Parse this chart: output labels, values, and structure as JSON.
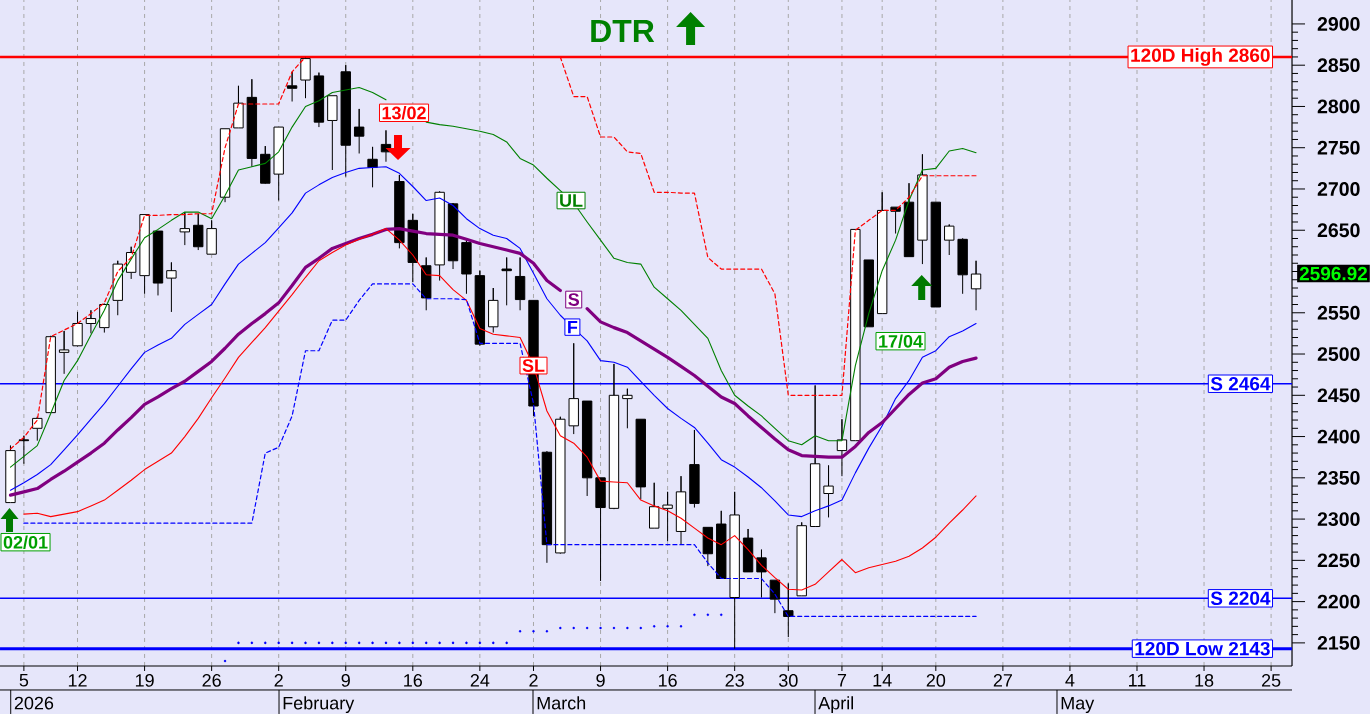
{
  "chart_data": {
    "type": "candlestick",
    "title": "DTR",
    "categories": [
      null,
      "5",
      null,
      null,
      null,
      "12",
      null,
      null,
      null,
      null,
      "19",
      null,
      null,
      null,
      null,
      "26",
      null,
      null,
      null,
      null,
      "2",
      null,
      null,
      null,
      null,
      "9",
      null,
      null,
      null,
      null,
      "16",
      null,
      null,
      null,
      null,
      "24",
      null,
      null,
      null,
      "2",
      null,
      null,
      null,
      null,
      "9",
      null,
      null,
      null,
      null,
      "16",
      null,
      null,
      null,
      null,
      "23",
      null,
      null,
      null,
      "30",
      null,
      null,
      null,
      "7",
      null,
      null,
      "14",
      null,
      null,
      null,
      "20",
      null,
      null,
      null,
      null,
      "27",
      null,
      null,
      null,
      null,
      "4",
      null,
      null,
      null,
      null,
      "11",
      null,
      null,
      null,
      null,
      "18",
      null,
      null,
      null,
      null,
      "25",
      null
    ],
    "ohlc": [
      [
        2320,
        2389,
        2320,
        2383
      ],
      [
        2396,
        2401,
        2367,
        2395
      ],
      [
        2410,
        2424,
        2395,
        2422
      ],
      [
        2429,
        2522,
        2429,
        2521
      ],
      [
        2502,
        2528,
        2476,
        2505
      ],
      [
        2510,
        2551,
        2509,
        2537
      ],
      [
        2537,
        2553,
        2525,
        2543
      ],
      [
        2532,
        2561,
        2526,
        2560
      ],
      [
        2565,
        2613,
        2547,
        2609
      ],
      [
        2599,
        2630,
        2591,
        2623
      ],
      [
        2595,
        2669,
        2573,
        2669
      ],
      [
        2649,
        2649,
        2571,
        2586
      ],
      [
        2592,
        2611,
        2551,
        2601
      ],
      [
        2648,
        2672,
        2632,
        2652
      ],
      [
        2656,
        2670,
        2626,
        2630
      ],
      [
        2621,
        2662,
        2621,
        2652
      ],
      [
        2690,
        2773,
        2684,
        2773
      ],
      [
        2774,
        2825,
        2774,
        2804
      ],
      [
        2811,
        2833,
        2727,
        2737
      ],
      [
        2742,
        2752,
        2706,
        2707
      ],
      [
        2718,
        2775,
        2686,
        2775
      ],
      [
        2825,
        2842,
        2806,
        2822
      ],
      [
        2832,
        2860,
        2810,
        2858
      ],
      [
        2837,
        2841,
        2775,
        2781
      ],
      [
        2783,
        2813,
        2723,
        2813
      ],
      [
        2842,
        2850,
        2715,
        2753
      ],
      [
        2775,
        2797,
        2743,
        2764
      ],
      [
        2736,
        2751,
        2702,
        2726
      ],
      [
        2754,
        2771,
        2733,
        2745
      ],
      [
        2709,
        2717,
        2628,
        2635
      ],
      [
        2662,
        2670,
        2587,
        2611
      ],
      [
        2607,
        2617,
        2553,
        2568
      ],
      [
        2608,
        2697,
        2589,
        2696
      ],
      [
        2682,
        2683,
        2603,
        2613
      ],
      [
        2635,
        2638,
        2573,
        2597
      ],
      [
        2595,
        2601,
        2510,
        2512
      ],
      [
        2533,
        2580,
        2526,
        2565
      ],
      [
        2603,
        2617,
        2559,
        2601
      ],
      [
        2594,
        2617,
        2553,
        2566
      ],
      [
        2565,
        2565,
        2425,
        2437
      ],
      [
        2381,
        2382,
        2247,
        2269
      ],
      [
        2259,
        2424,
        2258,
        2421
      ],
      [
        2413,
        2513,
        2403,
        2446
      ],
      [
        2443,
        2443,
        2328,
        2350
      ],
      [
        2350,
        2350,
        2225,
        2314
      ],
      [
        2313,
        2488,
        2312,
        2450
      ],
      [
        2446,
        2458,
        2410,
        2450
      ],
      [
        2421,
        2421,
        2324,
        2339
      ],
      [
        2289,
        2344,
        2289,
        2315
      ],
      [
        2313,
        2333,
        2273,
        2317
      ],
      [
        2285,
        2352,
        2269,
        2333
      ],
      [
        2366,
        2408,
        2314,
        2319
      ],
      [
        2290,
        2290,
        2243,
        2258
      ],
      [
        2294,
        2310,
        2228,
        2228
      ],
      [
        2205,
        2333,
        2143,
        2305
      ],
      [
        2277,
        2288,
        2236,
        2236
      ],
      [
        2253,
        2263,
        2205,
        2236
      ],
      [
        2226,
        2226,
        2186,
        2203
      ],
      [
        2189,
        2222,
        2157,
        2182
      ],
      [
        2207,
        2296,
        2207,
        2292
      ],
      [
        2291,
        2462,
        2291,
        2367
      ],
      [
        2331,
        2365,
        2302,
        2340
      ],
      [
        2383,
        2421,
        2352,
        2396
      ],
      [
        2395,
        2651,
        2395,
        2651
      ],
      [
        2614,
        2614,
        2533,
        2533
      ],
      [
        2549,
        2696,
        2549,
        2674
      ],
      [
        2678,
        2678,
        2646,
        2673
      ],
      [
        2684,
        2707,
        2618,
        2618
      ],
      [
        2638,
        2742,
        2609,
        2717
      ],
      [
        2684,
        2684,
        2557,
        2557
      ],
      [
        2638,
        2657,
        2620,
        2655
      ],
      [
        2639,
        2640,
        2573,
        2596
      ],
      [
        2579,
        2613,
        2553,
        2596.92
      ],
      null,
      null,
      null,
      null,
      null,
      null,
      null,
      null,
      null,
      null,
      null,
      null,
      null,
      null,
      null,
      null,
      null,
      null,
      null,
      null,
      null,
      null,
      null
    ],
    "series": [
      {
        "name": "UL",
        "type": "line",
        "color": "#008000",
        "line_style": "solid",
        "values": [
          2363,
          2376,
          2389,
          2428,
          2468,
          2492,
          2523,
          2553,
          2589,
          2615,
          2641,
          2651,
          2662,
          2672,
          2672,
          2664,
          2692,
          2723,
          2727,
          2731,
          2745,
          2775,
          2800,
          2807,
          2817,
          2820,
          2823,
          2817,
          2808,
          null,
          null,
          2781,
          2778,
          2776,
          2773,
          2770,
          2766,
          2757,
          2737,
          2729,
          2713,
          2698,
          2683,
          2660,
          2638,
          2616,
          2611,
          2609,
          2581,
          2567,
          2553,
          2536,
          2519,
          2480,
          2450,
          2437,
          2425,
          2410,
          2395,
          2390,
          2401,
          2395,
          2395,
          2486,
          2549,
          2601,
          2638,
          2686,
          2723,
          2725,
          2746,
          2749,
          2744,
          null,
          null,
          null,
          null,
          null,
          null,
          null,
          null,
          null,
          null,
          null,
          null,
          null,
          null,
          null,
          null,
          null,
          null,
          null,
          null,
          null,
          null,
          null
        ]
      },
      {
        "name": "F",
        "type": "line",
        "color": "#0000ff",
        "line_style": "solid",
        "values": [
          2335,
          2344,
          2354,
          2366,
          2384,
          2402,
          2421,
          2440,
          2461,
          2482,
          2502,
          2511,
          2519,
          2536,
          2548,
          2560,
          2585,
          2609,
          2622,
          2635,
          2653,
          2671,
          2695,
          2705,
          2714,
          2720,
          2725,
          2726,
          2727,
          2719,
          2703,
          2686,
          2689,
          2680,
          2664,
          2652,
          2644,
          2640,
          2628,
          2598,
          2567,
          2547,
          2531,
          2516,
          2492,
          2490,
          2484,
          2467,
          2450,
          2434,
          2422,
          2411,
          2392,
          2372,
          2363,
          2351,
          2338,
          2322,
          2305,
          2303,
          2310,
          2316,
          2323,
          2356,
          2386,
          2413,
          2446,
          2468,
          2496,
          2504,
          2521,
          2528,
          2537,
          null,
          null,
          null,
          null,
          null,
          null,
          null,
          null,
          null,
          null,
          null,
          null,
          null,
          null,
          null,
          null,
          null,
          null,
          null,
          null,
          null,
          null,
          null
        ]
      },
      {
        "name": "S",
        "type": "line",
        "color": "#800080",
        "line_style": "solid",
        "values": [
          2329,
          2333,
          2337,
          2348,
          2358,
          2369,
          2380,
          2392,
          2408,
          2423,
          2439,
          2448,
          2458,
          2467,
          2479,
          2491,
          2507,
          2524,
          2537,
          2549,
          2562,
          2583,
          2605,
          2616,
          2628,
          2634,
          2640,
          2645,
          2651,
          2652,
          2649,
          2646,
          2645,
          2644,
          2639,
          2634,
          2630,
          2626,
          2622,
          2610,
          2589,
          2577,
          null,
          2555,
          2539,
          2532,
          2526,
          2516,
          2506,
          2496,
          2485,
          2474,
          2461,
          2448,
          2440,
          2425,
          2411,
          2397,
          2384,
          2377,
          2376,
          2375,
          2375,
          2388,
          2405,
          2417,
          2434,
          2451,
          2465,
          2470,
          2484,
          2491,
          2495,
          null,
          null,
          null,
          null,
          null,
          null,
          null,
          null,
          null,
          null,
          null,
          null,
          null,
          null,
          null,
          null,
          null,
          null,
          null,
          null,
          null,
          null,
          null
        ]
      },
      {
        "name": "SL",
        "type": "line",
        "color": "#ff0000",
        "line_style": "solid",
        "values": [
          null,
          2306,
          2307,
          2303,
          2306,
          2309,
          2316,
          2323,
          2335,
          2347,
          2360,
          2370,
          2380,
          2400,
          2422,
          2447,
          2471,
          2496,
          2514,
          2532,
          2552,
          2572,
          2593,
          2613,
          2623,
          2632,
          2639,
          2645,
          2652,
          2638,
          2620,
          2596,
          2595,
          2578,
          2565,
          2531,
          2524,
          2522,
          2520,
          2486,
          2431,
          2401,
          2392,
          2375,
          2346,
          2345,
          2344,
          2323,
          2316,
          2310,
          2301,
          2289,
          2277,
          2269,
          2280,
          2263,
          2244,
          2229,
          2215,
          2214,
          2221,
          2236,
          2251,
          2235,
          2241,
          2245,
          2249,
          2255,
          2265,
          2278,
          2295,
          2311,
          2328,
          null,
          null,
          null,
          null,
          null,
          null,
          null,
          null,
          null,
          null,
          null,
          null,
          null,
          null,
          null,
          null,
          null,
          null,
          null,
          null,
          null,
          null,
          null
        ]
      },
      {
        "type": "line",
        "color": "#ff0000",
        "line_style": "dashed",
        "values": [
          2385,
          2399,
          2420,
          2521,
          2529,
          2537,
          2549,
          2562,
          2600,
          2617,
          2668,
          2668,
          2669,
          2669,
          2670,
          2670,
          2750,
          2803,
          2803,
          2803,
          2803,
          2842,
          2860,
          null,
          null,
          null,
          null,
          null,
          null,
          null,
          null,
          null,
          null,
          null,
          null,
          null,
          null,
          null,
          null,
          null,
          null,
          2860,
          2812,
          2812,
          2763,
          2763,
          2745,
          2743,
          2696,
          2696,
          2695,
          2695,
          2617,
          2603,
          2603,
          2603,
          2603,
          2573,
          2450,
          2450,
          2450,
          2450,
          2450,
          2650,
          2662,
          2674,
          2674,
          2690,
          2716,
          2716,
          2716,
          2716,
          2716,
          null,
          null,
          null,
          null,
          null,
          null,
          null,
          null,
          null,
          null,
          null,
          null,
          null,
          null,
          null,
          null,
          null,
          null,
          null,
          null,
          null,
          null,
          null
        ]
      },
      {
        "type": "line",
        "color": "#0000ff",
        "line_style": "dashed",
        "values": [
          null,
          2295,
          2295,
          2295,
          2295,
          2295,
          2295,
          2295,
          2295,
          2295,
          2295,
          2295,
          2295,
          2295,
          2295,
          2295,
          2295,
          2295,
          2295,
          2380,
          2387,
          2425,
          2504,
          2504,
          2541,
          2541,
          2565,
          2585,
          2585,
          2585,
          2585,
          2567,
          2567,
          2567,
          2566,
          2513,
          2513,
          2513,
          2513,
          2440,
          2269,
          2269,
          2269,
          2269,
          2269,
          2269,
          2269,
          2269,
          2269,
          2269,
          2269,
          2269,
          2247,
          2228,
          2228,
          2228,
          2228,
          2209,
          2182,
          2182,
          2182,
          2182,
          2182,
          2182,
          2182,
          2182,
          2182,
          2182,
          2182,
          2182,
          2182,
          2182,
          2182,
          null,
          null,
          null,
          null,
          null,
          null,
          null,
          null,
          null,
          null,
          null,
          null,
          null,
          null,
          null,
          null,
          null,
          null,
          null,
          null,
          null,
          null,
          null
        ]
      },
      {
        "type": "scatter",
        "color": "#0000ff",
        "marker": "circle",
        "values": [
          null,
          null,
          null,
          null,
          null,
          null,
          null,
          null,
          null,
          null,
          null,
          null,
          null,
          null,
          null,
          null,
          2128,
          2150,
          2150,
          2150,
          2150,
          2150,
          2150,
          2150,
          2150,
          2150,
          2150,
          2150,
          2150,
          2150,
          2150,
          2150,
          2150,
          2150,
          2150,
          2150,
          2150,
          2150,
          2164,
          2164,
          2164,
          2168,
          2168,
          2168,
          2168,
          2168,
          2168,
          2168,
          2170,
          2170,
          2170,
          2184,
          2184,
          2184,
          null,
          null,
          null,
          null,
          null,
          null,
          null,
          null,
          null,
          null,
          null,
          null,
          null,
          null,
          null,
          null,
          null,
          null,
          null,
          null,
          null,
          null,
          null,
          null,
          null,
          null,
          null,
          null,
          null,
          null,
          null,
          null,
          null,
          null,
          null,
          null,
          null,
          null,
          null,
          null,
          null,
          null
        ]
      }
    ],
    "ref_lines": [
      {
        "axis": "y",
        "value": 2860,
        "label": "120D High 2860",
        "color": "#ff0000"
      },
      {
        "axis": "y",
        "value": 2464,
        "label": "S 2464",
        "color": "#0000ff"
      },
      {
        "axis": "y",
        "value": 2204,
        "label": "S 2204",
        "color": "#0000ff"
      },
      {
        "axis": "y",
        "value": 2143,
        "label": "120D Low 2143",
        "color": "#0000ff"
      }
    ],
    "annotations": [
      "02/01",
      "13/02",
      "17/04",
      "2596.92",
      "2026",
      "February",
      "March",
      "April",
      "May"
    ],
    "ylim": [
      2122,
      2929
    ],
    "yticks": [
      2150,
      2200,
      2250,
      2300,
      2350,
      2400,
      2450,
      2500,
      2550,
      {
        "value": 2600,
        "label": null
      },
      2650,
      2700,
      2750,
      2800,
      2850,
      2900
    ],
    "grid": "x"
  }
}
